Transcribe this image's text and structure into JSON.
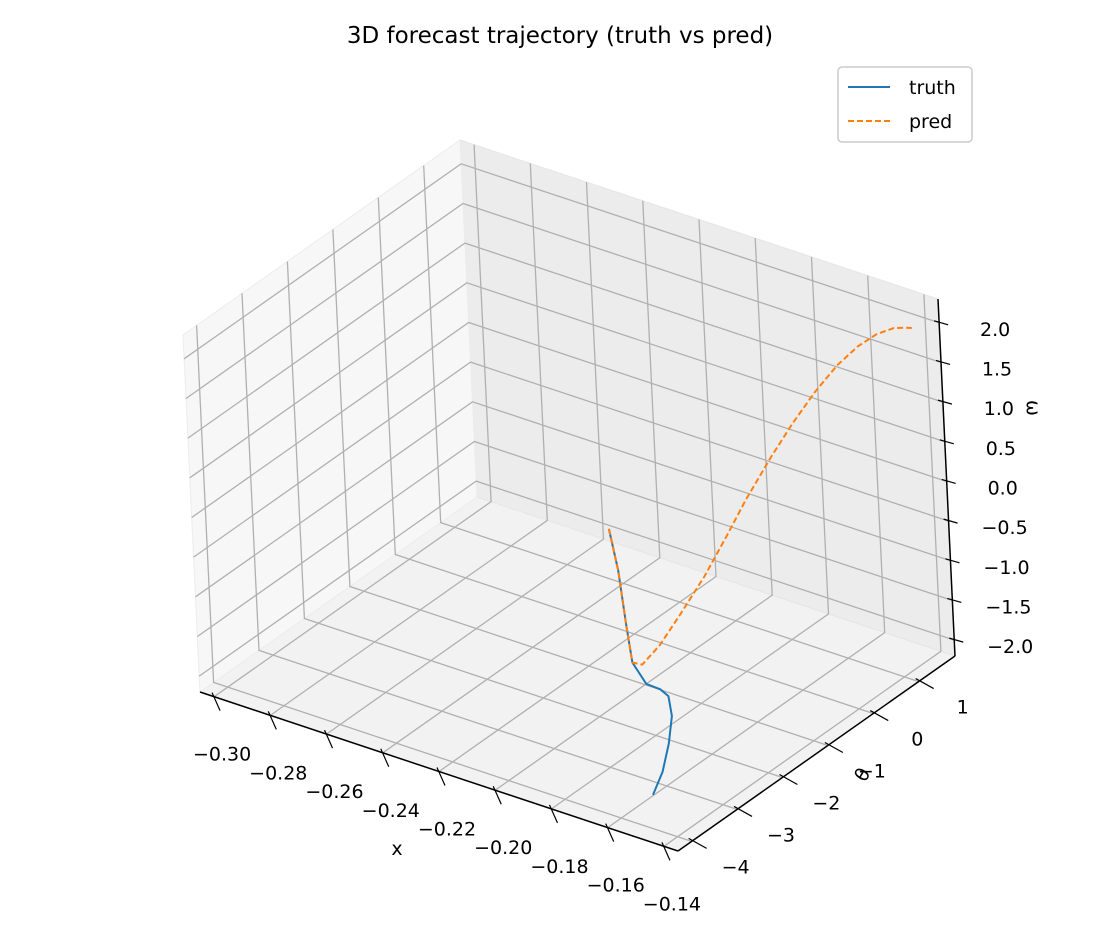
{
  "chart_data": {
    "type": "line",
    "projection": "3d",
    "title": "3D forecast trajectory (truth vs pred)",
    "xlabel": "x",
    "ylabel": "θ",
    "zlabel": "ω",
    "xlim": [
      -0.305,
      -0.135
    ],
    "ylim": [
      -4.3,
      1.8
    ],
    "zlim": [
      -2.2,
      2.3
    ],
    "xticks": [
      "−0.30",
      "−0.28",
      "−0.26",
      "−0.24",
      "−0.22",
      "−0.20",
      "−0.18",
      "−0.16",
      "−0.14"
    ],
    "yticks": [
      "−4",
      "−3",
      "−2",
      "−1",
      "0",
      "1"
    ],
    "zticks": [
      "−2.0",
      "−1.5",
      "−1.0",
      "−0.5",
      "0.0",
      "0.5",
      "1.0",
      "1.5",
      "2.0"
    ],
    "grid": true,
    "legend_position": "top-right",
    "series": [
      {
        "name": "truth",
        "color": "#1f77b4",
        "linestyle": "solid",
        "x": [
          -0.2155,
          -0.2108,
          -0.2051,
          -0.2008,
          -0.1938,
          -0.1866,
          -0.1809,
          -0.1749,
          -0.1704,
          -0.1665,
          -0.1631
        ],
        "y": [
          -0.7,
          -0.82,
          -1.04,
          -1.2,
          -1.34,
          -1.47,
          -1.64,
          -1.94,
          -2.3,
          -2.69,
          -3.12
        ],
        "z": [
          -0.54,
          -0.96,
          -1.49,
          -1.85,
          -1.98,
          -1.91,
          -1.86,
          -1.92,
          -2.07,
          -2.22,
          -2.3
        ]
      },
      {
        "name": "pred",
        "color": "#ff7f0e",
        "linestyle": "dashed",
        "x": [
          -0.2155,
          -0.2108,
          -0.2051,
          -0.2008,
          -0.1966,
          -0.1917,
          -0.187,
          -0.182,
          -0.1778,
          -0.1739,
          -0.169,
          -0.1649,
          -0.1607,
          -0.1563,
          -0.1519,
          -0.1476,
          -0.143,
          -0.1394,
          -0.137
        ],
        "y": [
          -0.7,
          -0.82,
          -1.04,
          -1.2,
          -1.24,
          -1.14,
          -0.94,
          -0.69,
          -0.44,
          -0.2,
          0.09,
          0.34,
          0.6,
          0.84,
          1.04,
          1.2,
          1.3,
          1.32,
          1.33
        ],
        "z": [
          -0.54,
          -0.96,
          -1.49,
          -1.85,
          -1.81,
          -1.55,
          -1.18,
          -0.75,
          -0.31,
          0.12,
          0.6,
          0.97,
          1.31,
          1.6,
          1.81,
          1.95,
          2.04,
          2.08,
          2.1
        ]
      }
    ]
  }
}
